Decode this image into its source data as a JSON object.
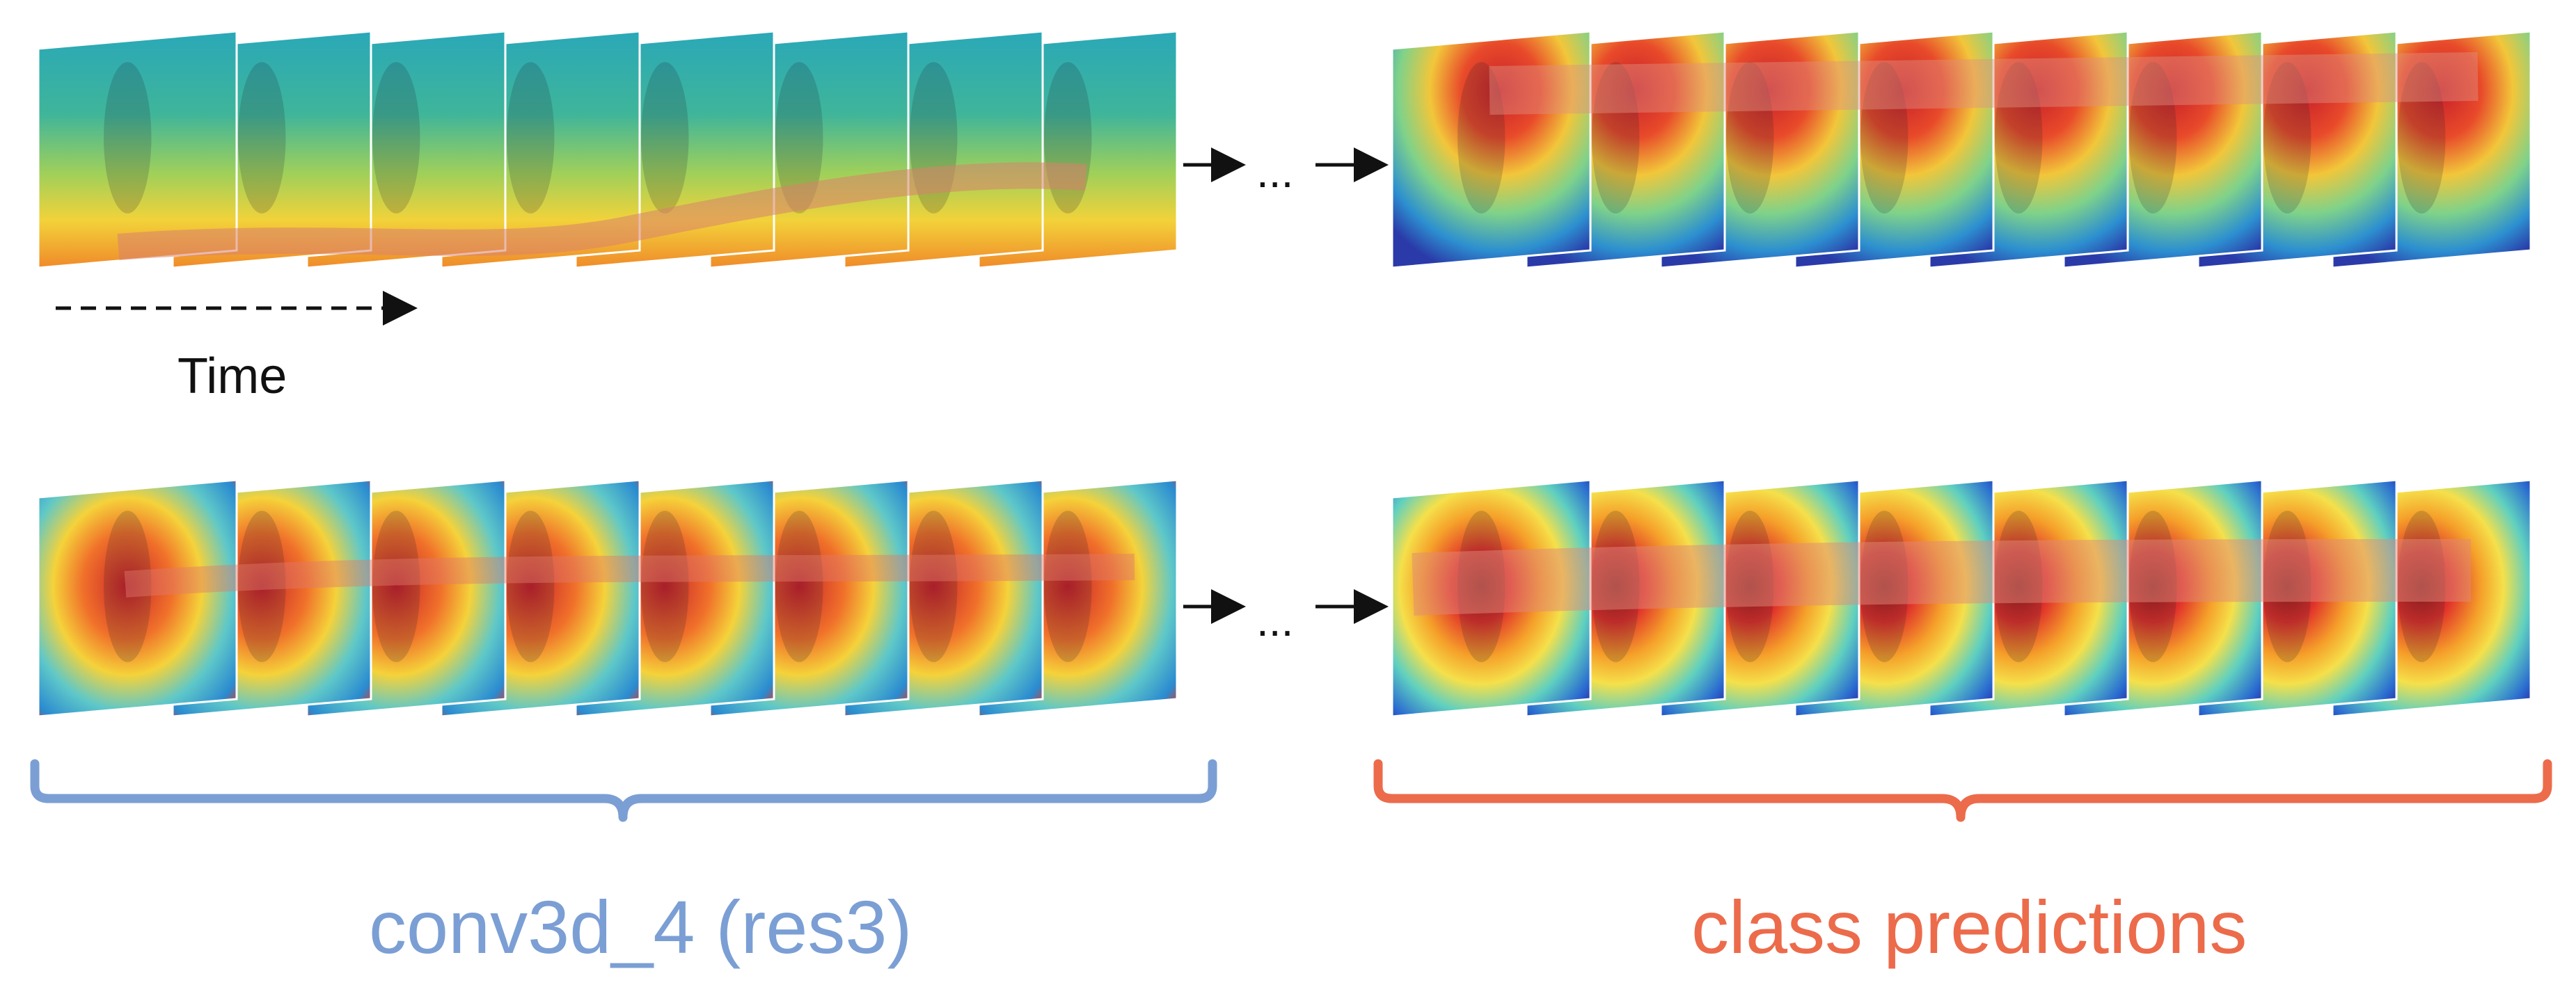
{
  "time_label": "Time",
  "ellipsis": "...",
  "left_bracket_label": "conv3d_4 (res3)",
  "right_bracket_label": "class predictions",
  "colors": {
    "left_bracket": "#7b9fd4",
    "right_bracket": "#ec6b4b",
    "arrow": "#111111"
  },
  "rows": [
    {
      "name": "top-row",
      "left_sequence": {
        "frames": 8,
        "heatmap": "features-over-time"
      },
      "right_sequence": {
        "frames": 8,
        "heatmap": "class-activation"
      }
    },
    {
      "name": "bottom-row",
      "left_sequence": {
        "frames": 8,
        "heatmap": "features-over-time"
      },
      "right_sequence": {
        "frames": 8,
        "heatmap": "class-activation"
      }
    }
  ]
}
